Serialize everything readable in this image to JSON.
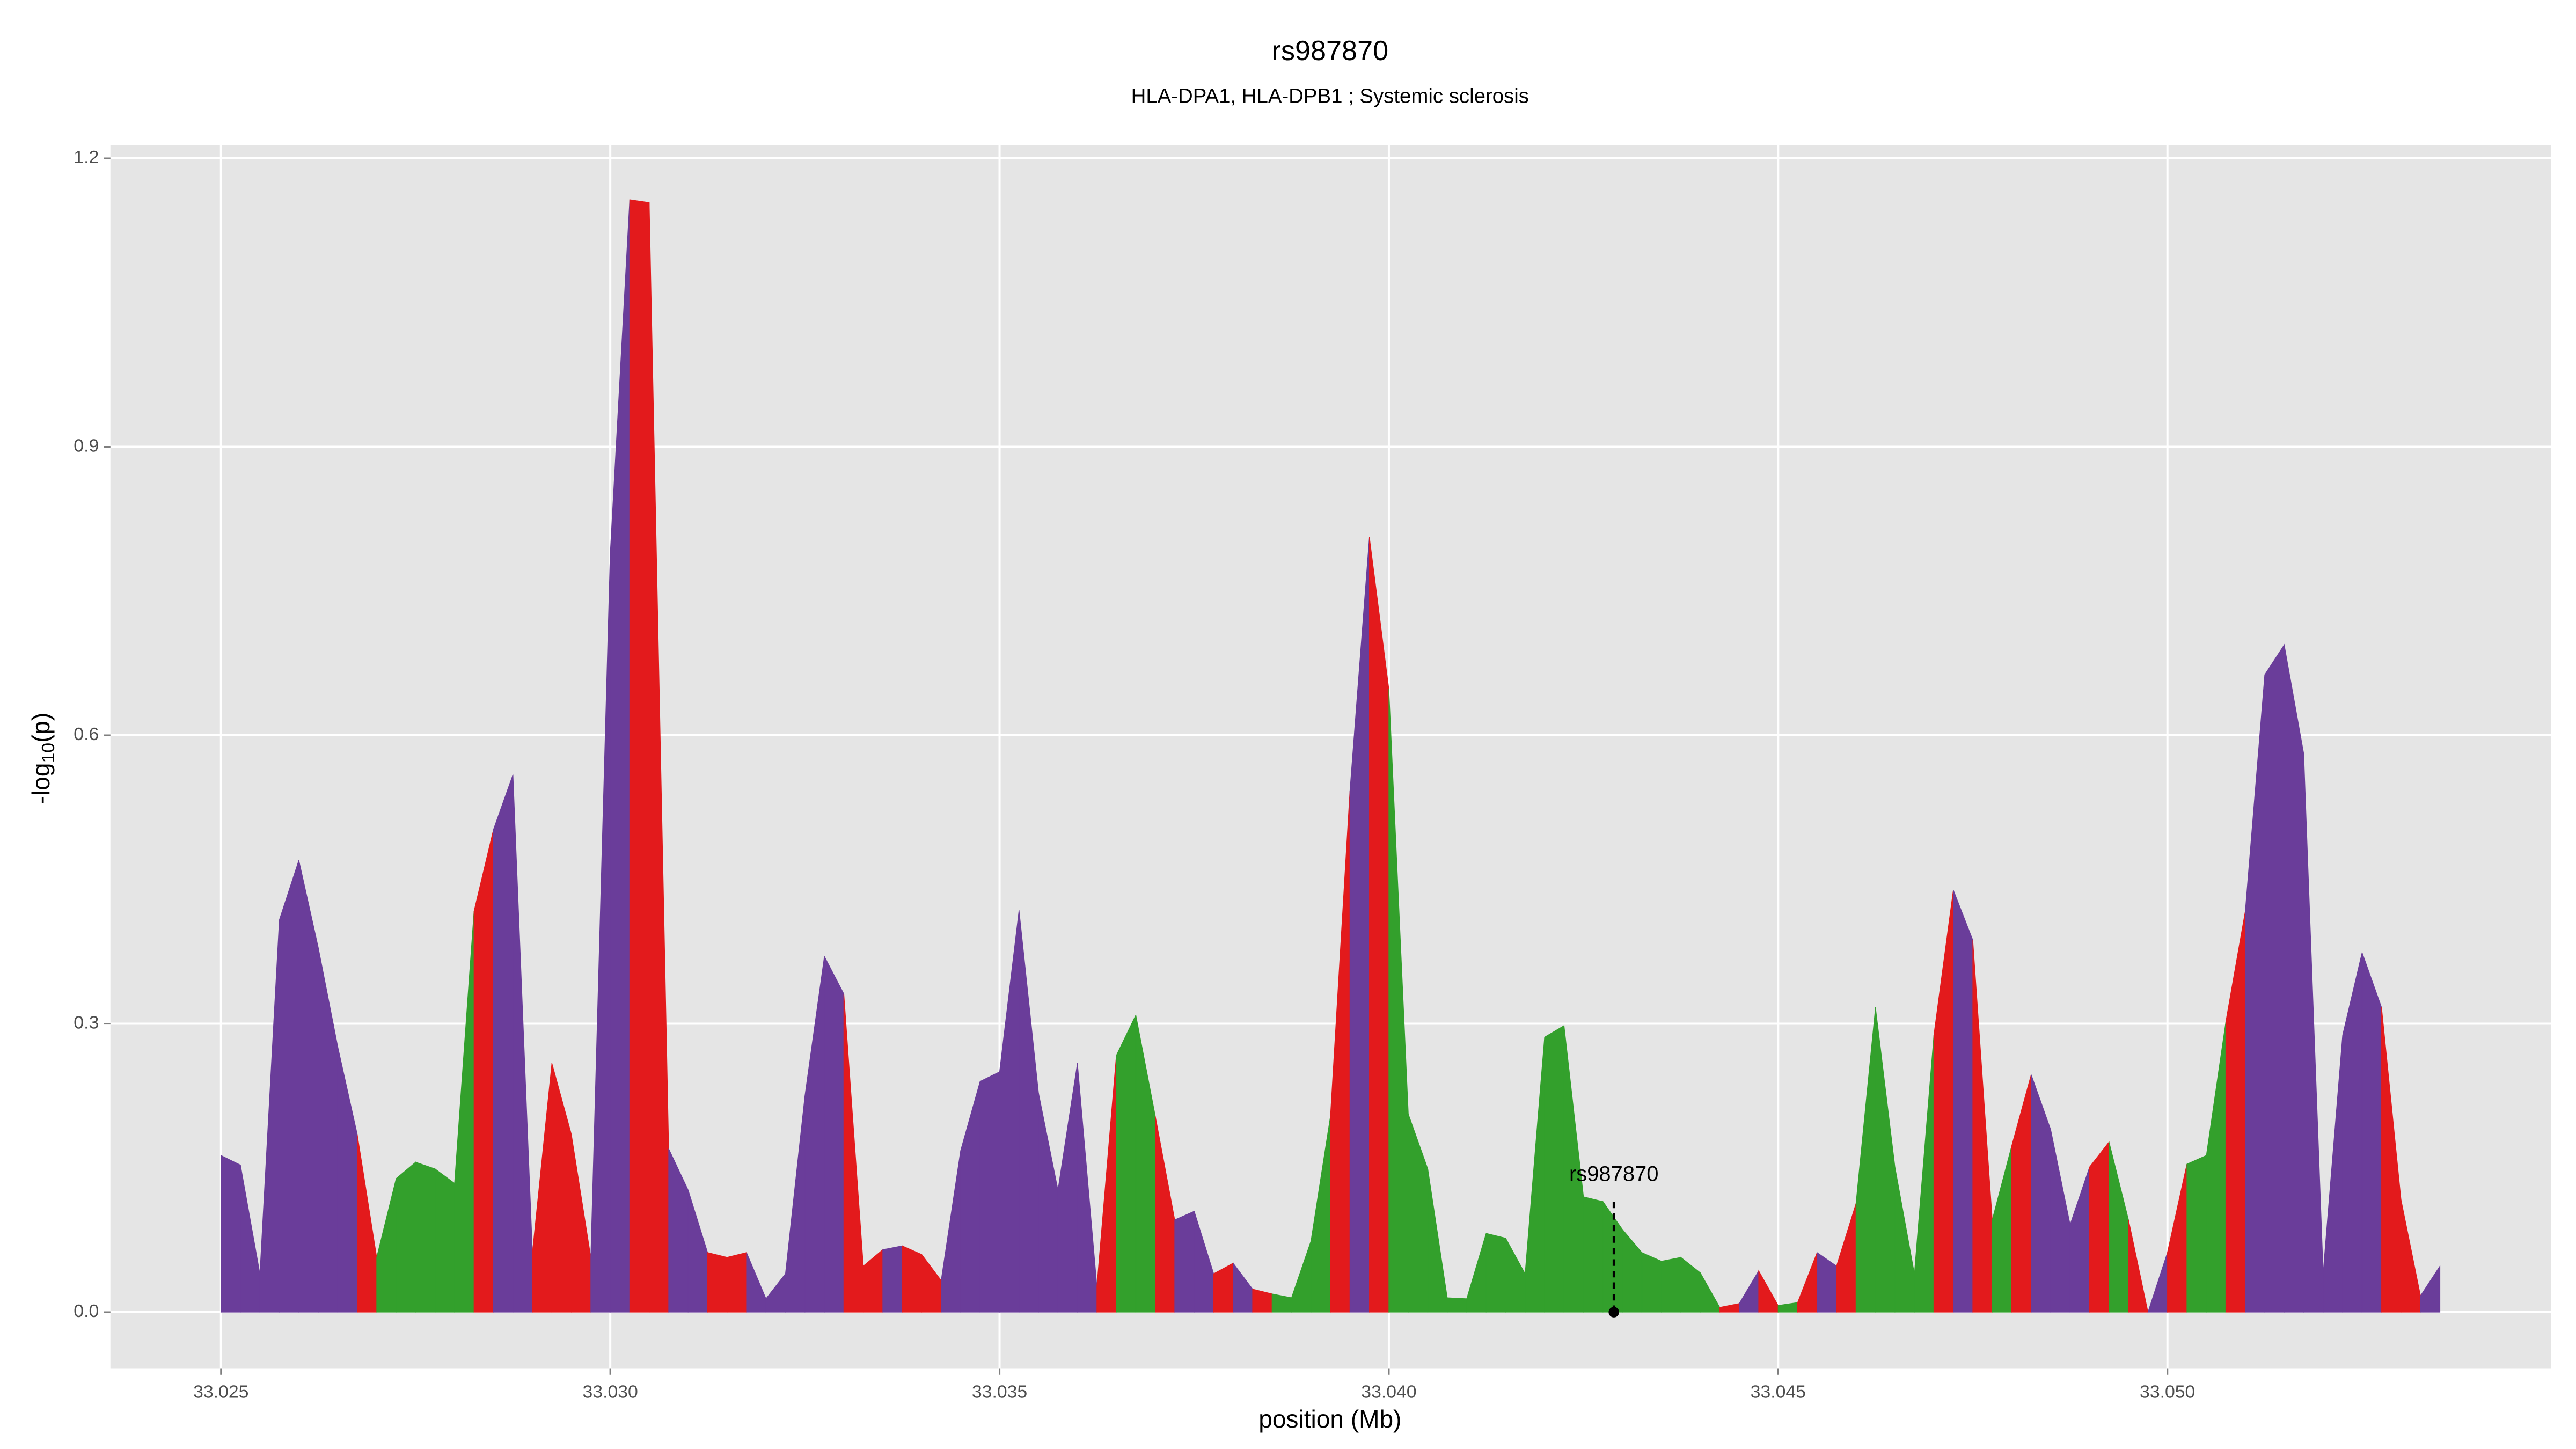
{
  "chart_data": {
    "type": "area",
    "title": "rs987870",
    "subtitle": "HLA-DPA1, HLA-DPB1 ; Systemic sclerosis",
    "xlabel": "position (Mb)",
    "ylabel": {
      "prefix": "-log",
      "sub": "10",
      "suffix": "(p)"
    },
    "x": [
      33.025,
      33.02525,
      33.0255,
      33.02575,
      33.026,
      33.02625,
      33.0265,
      33.02675,
      33.027,
      33.02725,
      33.0275,
      33.02775,
      33.028,
      33.02825,
      33.0285,
      33.02875,
      33.029,
      33.02925,
      33.0295,
      33.02975,
      33.03,
      33.03025,
      33.0305,
      33.03075,
      33.031,
      33.03125,
      33.0315,
      33.03175,
      33.032,
      33.03225,
      33.0325,
      33.03275,
      33.033,
      33.03325,
      33.0335,
      33.03375,
      33.034,
      33.03425,
      33.0345,
      33.03475,
      33.035,
      33.03525,
      33.0355,
      33.03575,
      33.036,
      33.03625,
      33.0365,
      33.03675,
      33.037,
      33.03725,
      33.0375,
      33.03775,
      33.038,
      33.03825,
      33.0385,
      33.03875,
      33.039,
      33.03925,
      33.0395,
      33.03975,
      33.04,
      33.04025,
      33.0405,
      33.04075,
      33.041,
      33.04125,
      33.0415,
      33.04175,
      33.042,
      33.04225,
      33.0425,
      33.04275,
      33.043,
      33.04325,
      33.0435,
      33.04375,
      33.044,
      33.04425,
      33.0445,
      33.04475,
      33.045,
      33.04525,
      33.0455,
      33.04575,
      33.046,
      33.04625,
      33.0465,
      33.04675,
      33.047,
      33.04725,
      33.0475,
      33.04775,
      33.048,
      33.04825,
      33.0485,
      33.04875,
      33.049,
      33.04925,
      33.0495,
      33.04975,
      33.05,
      33.05025,
      33.0505,
      33.05075,
      33.051,
      33.05125,
      33.0515,
      33.05175,
      33.052,
      33.05225,
      33.0525,
      33.05275,
      33.053,
      33.05325,
      33.0535
    ],
    "values": [
      0.163,
      0.153,
      0.04,
      0.408,
      0.47,
      0.379,
      0.276,
      0.185,
      0.057,
      0.139,
      0.156,
      0.149,
      0.134,
      0.417,
      0.502,
      0.559,
      0.062,
      0.259,
      0.185,
      0.057,
      0.79,
      1.157,
      1.154,
      0.17,
      0.127,
      0.062,
      0.057,
      0.062,
      0.014,
      0.04,
      0.225,
      0.37,
      0.331,
      0.048,
      0.065,
      0.069,
      0.06,
      0.033,
      0.168,
      0.24,
      0.25,
      0.418,
      0.228,
      0.127,
      0.259,
      0.027,
      0.267,
      0.309,
      0.204,
      0.096,
      0.105,
      0.04,
      0.051,
      0.024,
      0.019,
      0.015,
      0.074,
      0.204,
      0.542,
      0.806,
      0.648,
      0.206,
      0.149,
      0.015,
      0.014,
      0.082,
      0.077,
      0.04,
      0.286,
      0.298,
      0.12,
      0.115,
      0.086,
      0.062,
      0.053,
      0.057,
      0.041,
      0.005,
      0.009,
      0.043,
      0.007,
      0.01,
      0.062,
      0.048,
      0.113,
      0.317,
      0.151,
      0.04,
      0.288,
      0.439,
      0.387,
      0.096,
      0.173,
      0.247,
      0.19,
      0.091,
      0.151,
      0.177,
      0.096,
      0,
      0.062,
      0.154,
      0.163,
      0.302,
      0.417,
      0.663,
      0.694,
      0.581,
      0.041,
      0.288,
      0.374,
      0.317,
      0.117,
      0.017,
      0.048
    ],
    "segment_colors": [
      "#6a3d9a",
      "#6a3d9a",
      "#6a3d9a",
      "#6a3d9a",
      "#6a3d9a",
      "#6a3d9a",
      "#6a3d9a",
      "#e31a1c",
      "#33a02c",
      "#33a02c",
      "#33a02c",
      "#33a02c",
      "#33a02c",
      "#e31a1c",
      "#6a3d9a",
      "#6a3d9a",
      "#e31a1c",
      "#e31a1c",
      "#e31a1c",
      "#6a3d9a",
      "#6a3d9a",
      "#e31a1c",
      "#e31a1c",
      "#6a3d9a",
      "#6a3d9a",
      "#e31a1c",
      "#e31a1c",
      "#6a3d9a",
      "#6a3d9a",
      "#6a3d9a",
      "#6a3d9a",
      "#6a3d9a",
      "#e31a1c",
      "#e31a1c",
      "#6a3d9a",
      "#e31a1c",
      "#e31a1c",
      "#6a3d9a",
      "#6a3d9a",
      "#6a3d9a",
      "#6a3d9a",
      "#6a3d9a",
      "#6a3d9a",
      "#6a3d9a",
      "#6a3d9a",
      "#e31a1c",
      "#33a02c",
      "#33a02c",
      "#e31a1c",
      "#6a3d9a",
      "#6a3d9a",
      "#e31a1c",
      "#6a3d9a",
      "#e31a1c",
      "#33a02c",
      "#33a02c",
      "#33a02c",
      "#e31a1c",
      "#6a3d9a",
      "#e31a1c",
      "#33a02c",
      "#33a02c",
      "#33a02c",
      "#33a02c",
      "#33a02c",
      "#33a02c",
      "#33a02c",
      "#33a02c",
      "#33a02c",
      "#33a02c",
      "#33a02c",
      "#33a02c",
      "#33a02c",
      "#33a02c",
      "#33a02c",
      "#33a02c",
      "#33a02c",
      "#e31a1c",
      "#6a3d9a",
      "#e31a1c",
      "#33a02c",
      "#e31a1c",
      "#6a3d9a",
      "#e31a1c",
      "#33a02c",
      "#33a02c",
      "#33a02c",
      "#33a02c",
      "#e31a1c",
      "#6a3d9a",
      "#e31a1c",
      "#33a02c",
      "#e31a1c",
      "#6a3d9a",
      "#6a3d9a",
      "#6a3d9a",
      "#e31a1c",
      "#33a02c",
      "#e31a1c",
      "#6a3d9a",
      "#e31a1c",
      "#33a02c",
      "#33a02c",
      "#e31a1c",
      "#6a3d9a",
      "#6a3d9a",
      "#6a3d9a",
      "#6a3d9a",
      "#6a3d9a",
      "#6a3d9a",
      "#6a3d9a",
      "#e31a1c",
      "#e31a1c",
      "#6a3d9a"
    ],
    "annotation": {
      "text": "rs987870",
      "x": 33.04289,
      "y": 0.115
    },
    "xlim": [
      33.02358,
      33.05493
    ],
    "ylim": [
      -0.0583,
      1.2138
    ],
    "xticks": [
      33.025,
      {
        "value": 33.03,
        "label": "33.030"
      },
      33.035,
      {
        "value": 33.04,
        "label": "33.040"
      },
      33.045,
      {
        "value": 33.05,
        "label": "33.050"
      }
    ],
    "yticks": [
      {
        "value": 0,
        "label": "0.0"
      },
      0.3,
      0.6,
      0.9,
      1.2
    ],
    "grid": true
  }
}
